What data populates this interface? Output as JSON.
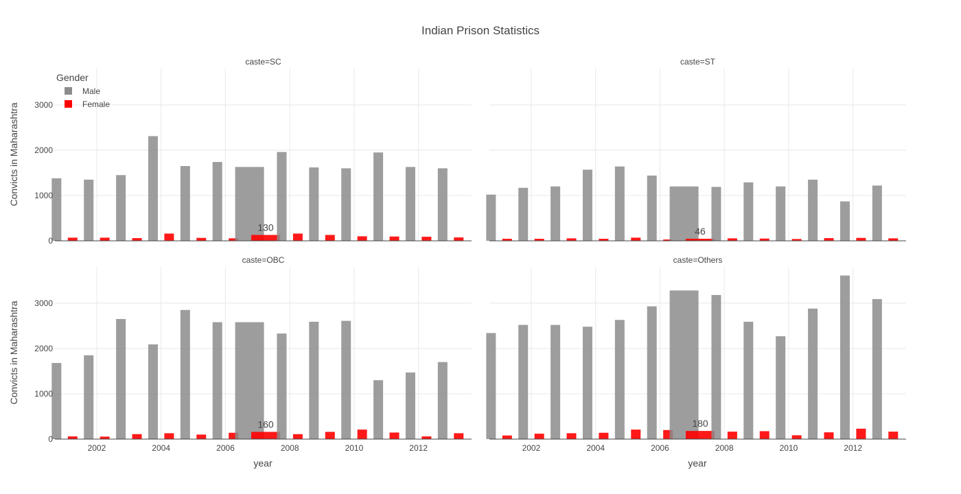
{
  "chart_data": {
    "type": "bar",
    "title": "Indian Prison Statistics",
    "xlabel": "year",
    "ylabel": "Convicts in Maharashtra",
    "xlim": [
      2000.7,
      2013.65
    ],
    "ylim": [
      0,
      3800
    ],
    "xticks": [
      2002,
      2004,
      2006,
      2008,
      2010,
      2012
    ],
    "yticks": [
      0,
      1000,
      2000,
      3000
    ],
    "grid": true,
    "legend": {
      "title": "Gender",
      "placement": "top-left",
      "entries": [
        {
          "name": "Male",
          "color": "#8c8c8c"
        },
        {
          "name": "Female",
          "color": "#ff0000"
        }
      ]
    },
    "colors": {
      "Male": "#8c8c8c",
      "Female": "#ff0000"
    },
    "years": [
      2001,
      2002,
      2003,
      2004,
      2005,
      2006,
      2007,
      2008,
      2009,
      2010,
      2011,
      2012,
      2013
    ],
    "highlight_year": 2007,
    "panels": [
      {
        "title": "caste=SC",
        "male": [
          1380,
          1350,
          1450,
          2310,
          1650,
          1740,
          1630,
          1960,
          1620,
          1600,
          1950,
          1630,
          1600
        ],
        "female": [
          70,
          70,
          60,
          160,
          65,
          55,
          130,
          160,
          130,
          100,
          95,
          90,
          75
        ],
        "annotation": {
          "x": 2007,
          "text": "130"
        }
      },
      {
        "title": "caste=ST",
        "male": [
          1020,
          1170,
          1200,
          1570,
          1640,
          1440,
          1200,
          1190,
          1290,
          1200,
          1350,
          870,
          1220
        ],
        "female": [
          45,
          45,
          55,
          45,
          70,
          30,
          46,
          55,
          50,
          40,
          60,
          65,
          55
        ],
        "annotation": {
          "x": 2007,
          "text": "46"
        }
      },
      {
        "title": "caste=OBC",
        "male": [
          1680,
          1850,
          2650,
          2090,
          2850,
          2580,
          2580,
          2330,
          2590,
          2610,
          1300,
          1470,
          1700
        ],
        "female": [
          60,
          55,
          110,
          130,
          100,
          140,
          160,
          110,
          160,
          210,
          145,
          60,
          130
        ],
        "annotation": {
          "x": 2007,
          "text": "160"
        }
      },
      {
        "title": "caste=Others",
        "male": [
          2340,
          2520,
          2520,
          2480,
          2630,
          2930,
          3280,
          3180,
          2590,
          2270,
          2880,
          3610,
          3090
        ],
        "female": [
          80,
          120,
          130,
          140,
          210,
          200,
          180,
          165,
          175,
          85,
          150,
          230,
          165
        ],
        "annotation": {
          "x": 2007,
          "text": "180"
        }
      }
    ]
  }
}
